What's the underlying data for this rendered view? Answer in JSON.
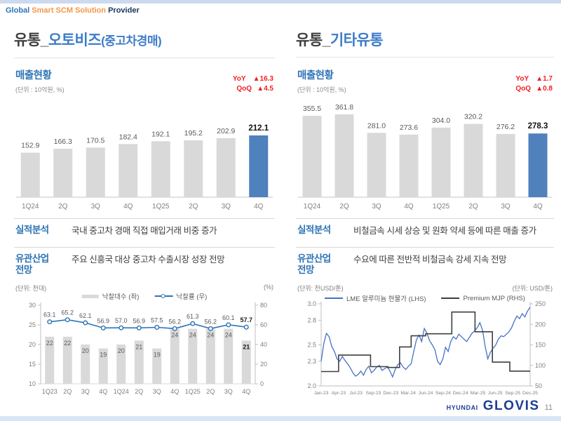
{
  "header": {
    "prefix": "Global",
    "middle": "Smart SCM Solution",
    "suffix": "Provider"
  },
  "colors": {
    "accent_blue": "#2e74b5",
    "title_blue": "#3d7cc9",
    "bar_gray": "#d9d9d9",
    "bar_highlight_blue": "#4f81bd",
    "kpi_red": "#f01e23",
    "tagline_orange": "#f79646",
    "logo_blue": "#1d3e94"
  },
  "left_panel": {
    "title_prefix": "유통_",
    "title_main": "오토비즈",
    "title_suffix": "(중고차경매)",
    "revenue": {
      "section_title": "매출현황",
      "unit": "(단위 : 10억원, %)",
      "yoy_label": "YoY",
      "yoy_value": "▲16.3",
      "qoq_label": "QoQ",
      "qoq_value": "▲4.5"
    },
    "analysis": {
      "label": "실적분석",
      "text": "국내 중고차 경매 직접 매입거래 비중 증가"
    },
    "outlook": {
      "label_line1": "유관산업",
      "label_line2": "전망",
      "text": "주요 신흥국 대상 중고차 수출시장 성장 전망"
    }
  },
  "right_panel": {
    "title_prefix": "유통_",
    "title_main": "기타유통",
    "title_suffix": "",
    "revenue": {
      "section_title": "매출현황",
      "unit": "(단위 : 10억원, %)",
      "yoy_label": "YoY",
      "yoy_value": "▲1.7",
      "qoq_label": "QoQ",
      "qoq_value": "▲0.8"
    },
    "analysis": {
      "label": "실적분석",
      "text": "비철금속 시세 상승 및 원화 약세 등에 따른 매출 증가"
    },
    "outlook": {
      "label_line1": "유관산업",
      "label_line2": "전망",
      "text": "수요에 따른 전반적 비철금속 강세 지속 전망"
    }
  },
  "footer": {
    "logo_hyundai": "HYUNDAI",
    "logo_glovis": "GLOVIS",
    "page_number": "11"
  },
  "chart_data": [
    {
      "id": "autobiz-revenue",
      "type": "bar",
      "title": "매출현황 (유통_오토비즈)",
      "unit": "10억원",
      "categories": [
        "1Q24",
        "2Q",
        "3Q",
        "4Q",
        "1Q25",
        "2Q",
        "3Q",
        "4Q"
      ],
      "values": [
        152.9,
        166.3,
        170.5,
        182.4,
        192.1,
        195.2,
        202.9,
        212.1
      ],
      "labels": [
        "152.9",
        "166.3",
        "170.5",
        "182.4",
        "192.1",
        "195.2",
        "202.9",
        "212.1"
      ],
      "highlight_index": 7,
      "bar_color": "#d9d9d9",
      "highlight_color": "#4f81bd"
    },
    {
      "id": "other-distribution-revenue",
      "type": "bar",
      "title": "매출현황 (유통_기타유통)",
      "unit": "10억원",
      "categories": [
        "1Q24",
        "2Q",
        "3Q",
        "4Q",
        "1Q25",
        "2Q",
        "3Q",
        "4Q"
      ],
      "values": [
        355.5,
        361.8,
        281.0,
        273.6,
        304.0,
        320.2,
        276.2,
        278.3
      ],
      "labels": [
        "355.5",
        "361.8",
        "281.0",
        "273.6",
        "304.0",
        "320.2",
        "276.2",
        "278.3"
      ],
      "highlight_index": 7,
      "bar_color": "#d9d9d9",
      "highlight_color": "#4f81bd"
    },
    {
      "id": "used-car-auction-outlook",
      "type": "bar+line",
      "categories": [
        "1Q23",
        "2Q",
        "3Q",
        "4Q",
        "1Q24",
        "2Q",
        "3Q",
        "4Q",
        "1Q25",
        "2Q",
        "3Q",
        "4Q"
      ],
      "series": [
        {
          "name": "낙찰대수 (좌)",
          "kind": "bar",
          "axis": "left",
          "color": "#d9d9d9",
          "values": [
            22,
            22,
            20,
            19,
            20,
            21,
            19,
            24,
            24,
            24,
            24,
            21
          ],
          "labels": [
            "22",
            "22",
            "20",
            "19",
            "20",
            "21",
            "19",
            "24",
            "24",
            "24",
            "24",
            "21"
          ]
        },
        {
          "name": "낙찰률 (우)",
          "kind": "line",
          "axis": "right",
          "color": "#2e74b5",
          "values": [
            63.1,
            65.2,
            62.1,
            56.9,
            57.0,
            56.9,
            57.5,
            56.2,
            61.3,
            56.2,
            60.1,
            57.7
          ],
          "labels": [
            "63.1",
            "65.2",
            "62.1",
            "56.9",
            "57.0",
            "56.9",
            "57.5",
            "56.2",
            "61.3",
            "56.2",
            "60.1",
            "57.7"
          ]
        }
      ],
      "left_axis": {
        "unit": "(단위: 천대)",
        "min": 10,
        "max": 30,
        "ticks": [
          "10",
          "15",
          "20",
          "25",
          "30"
        ]
      },
      "right_axis": {
        "unit": "(%)",
        "min": 0,
        "max": 80,
        "ticks": [
          "0",
          "20",
          "40",
          "60",
          "80"
        ]
      }
    },
    {
      "id": "aluminum-price-outlook",
      "type": "line",
      "x_labels": [
        "Jan-23",
        "Apr-23",
        "Jul-23",
        "Sep-23",
        "Dec-23",
        "Mar-24",
        "Jun-24",
        "Sep-24",
        "Dec-24",
        "Mar-25",
        "Jun-25",
        "Sep-25",
        "Dec-25"
      ],
      "x_max_months": 36,
      "series": [
        {
          "name": "LME 알루미늄 현물가 (LHS)",
          "axis": "left",
          "color": "#4472c4",
          "kind": "line",
          "values": [
            2.3,
            2.52,
            2.64,
            2.6,
            2.48,
            2.42,
            2.33,
            2.3,
            2.36,
            2.31,
            2.27,
            2.22,
            2.16,
            2.12,
            2.14,
            2.18,
            2.13,
            2.2,
            2.24,
            2.16,
            2.19,
            2.23,
            2.25,
            2.19,
            2.21,
            2.23,
            2.18,
            2.11,
            2.2,
            2.26,
            2.28,
            2.23,
            2.2,
            2.24,
            2.27,
            2.42,
            2.56,
            2.62,
            2.54,
            2.7,
            2.64,
            2.55,
            2.5,
            2.44,
            2.3,
            2.26,
            2.33,
            2.47,
            2.42,
            2.54,
            2.6,
            2.57,
            2.63,
            2.6,
            2.57,
            2.54,
            2.59,
            2.64,
            2.67,
            2.71,
            2.77,
            2.68,
            2.48,
            2.33,
            2.41,
            2.46,
            2.5,
            2.57,
            2.61,
            2.6,
            2.63,
            2.66,
            2.71,
            2.79,
            2.85,
            2.82,
            2.88,
            2.84,
            2.91,
            2.96
          ]
        },
        {
          "name": "Premium MJP (RHS)",
          "axis": "right",
          "color": "#3f3f3f",
          "kind": "step",
          "points": [
            [
              0,
              85
            ],
            [
              3,
              125
            ],
            [
              8.5,
              97
            ],
            [
              11.5,
              95
            ],
            [
              13.5,
              145
            ],
            [
              15.5,
              172
            ],
            [
              18,
              177
            ],
            [
              22.5,
              230
            ],
            [
              26.5,
              182
            ],
            [
              29.5,
              108
            ],
            [
              32.5,
              86
            ],
            [
              36,
              86
            ]
          ]
        }
      ],
      "left_axis": {
        "unit": "(단위: 천USD/톤)",
        "min": 2.0,
        "max": 3.0,
        "ticks": [
          "2.0",
          "2.3",
          "2.5",
          "2.8",
          "3.0"
        ]
      },
      "right_axis": {
        "unit": "(단위: USD/톤)",
        "min": 50,
        "max": 250,
        "ticks": [
          "50",
          "100",
          "150",
          "200",
          "250"
        ]
      }
    }
  ]
}
